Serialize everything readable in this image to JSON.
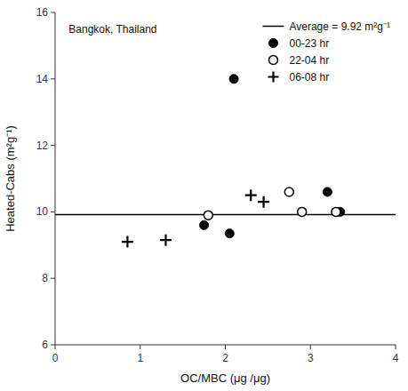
{
  "chart_data": {
    "type": "scatter",
    "title": "Bangkok, Thailand",
    "xlabel": "OC/MBC (μg /μg)",
    "ylabel": "Heated-Cabs (m²g⁻¹)",
    "series": [
      {
        "name": "Average = 9.92 m²g⁻¹",
        "type": "hline",
        "color": "black",
        "line_style": "solid",
        "values": [
          9.92
        ]
      },
      {
        "name": "00-23 hr",
        "color": "black",
        "marker": "circle",
        "x": [
          1.75,
          2.05,
          2.1,
          3.2,
          3.35
        ],
        "values": [
          9.6,
          9.35,
          14.0,
          10.6,
          10.0
        ]
      },
      {
        "name": "22-04 hr",
        "color": "black",
        "marker": "open-circle",
        "x": [
          1.8,
          2.75,
          2.9,
          3.3
        ],
        "values": [
          9.9,
          10.6,
          10.0,
          10.0
        ]
      },
      {
        "name": "06-08 hr",
        "color": "black",
        "marker": "plus",
        "x": [
          0.85,
          1.3,
          2.3,
          2.45
        ],
        "values": [
          9.1,
          9.15,
          10.5,
          10.3
        ]
      }
    ],
    "xlim": [
      0,
      4
    ],
    "ylim": [
      6,
      16
    ],
    "xticks": [
      0,
      1,
      2,
      3,
      4
    ],
    "yticks": [
      6,
      8,
      10,
      12,
      14,
      16
    ],
    "grid": false,
    "legend": "upper right"
  }
}
